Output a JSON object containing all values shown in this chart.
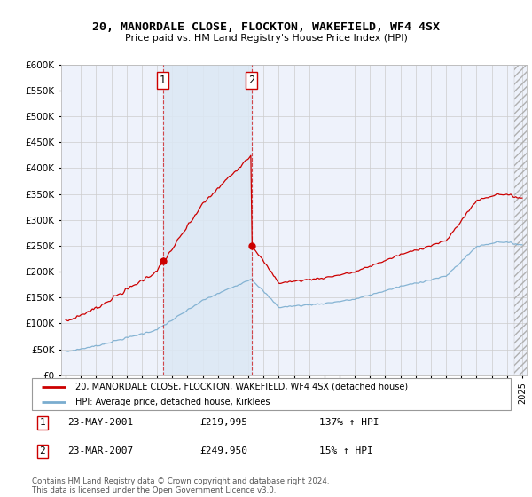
{
  "title1": "20, MANORDALE CLOSE, FLOCKTON, WAKEFIELD, WF4 4SX",
  "title2": "Price paid vs. HM Land Registry's House Price Index (HPI)",
  "legend_label1": "20, MANORDALE CLOSE, FLOCKTON, WAKEFIELD, WF4 4SX (detached house)",
  "legend_label2": "HPI: Average price, detached house, Kirklees",
  "annotation1_date": "23-MAY-2001",
  "annotation1_price": "£219,995",
  "annotation1_hpi": "137% ↑ HPI",
  "annotation2_date": "23-MAR-2007",
  "annotation2_price": "£249,950",
  "annotation2_hpi": "15% ↑ HPI",
  "footnote": "Contains HM Land Registry data © Crown copyright and database right 2024.\nThis data is licensed under the Open Government Licence v3.0.",
  "sale1_year": 2001.38,
  "sale2_year": 2007.22,
  "sale1_price": 219995,
  "sale2_price": 249950,
  "ylim_max": 600000,
  "ylim_min": 0,
  "background_color": "#ffffff",
  "plot_bg_color": "#eef2fb",
  "grid_color": "#cccccc",
  "red_color": "#cc0000",
  "blue_color": "#7aadcf",
  "shade_color": "#dce8f5"
}
